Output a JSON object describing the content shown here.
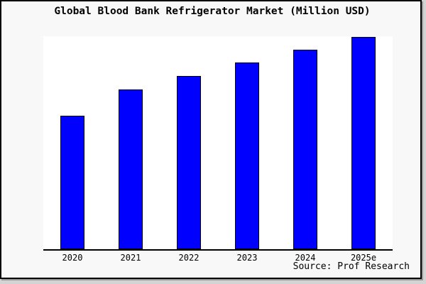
{
  "page": {
    "background": "#d4d4d4",
    "frame_background": "#f8f8f8",
    "frame_border_color": "#000000",
    "frame_shadow_color": "#999999"
  },
  "chart_data": {
    "type": "bar",
    "title": "Global Blood Bank Refrigerator Market (Million USD)",
    "categories": [
      "2020",
      "2021",
      "2022",
      "2023",
      "2024",
      "2025e"
    ],
    "values": [
      62.8,
      75.2,
      81.5,
      87.9,
      93.8,
      100
    ],
    "value_note": "y-axis has no tick labels; values estimated from bar heights, normalized to 2025e = 100",
    "xlabel": "",
    "ylabel": "",
    "ylim": [
      0,
      100.2
    ],
    "grid": false,
    "legend": "none",
    "plot_background": "#ffffff",
    "bar_color": "#0000ff",
    "bar_border_color": "#000000",
    "axis_line_color": "#000000"
  },
  "footer": {
    "source_label": "Source: Prof Research"
  }
}
